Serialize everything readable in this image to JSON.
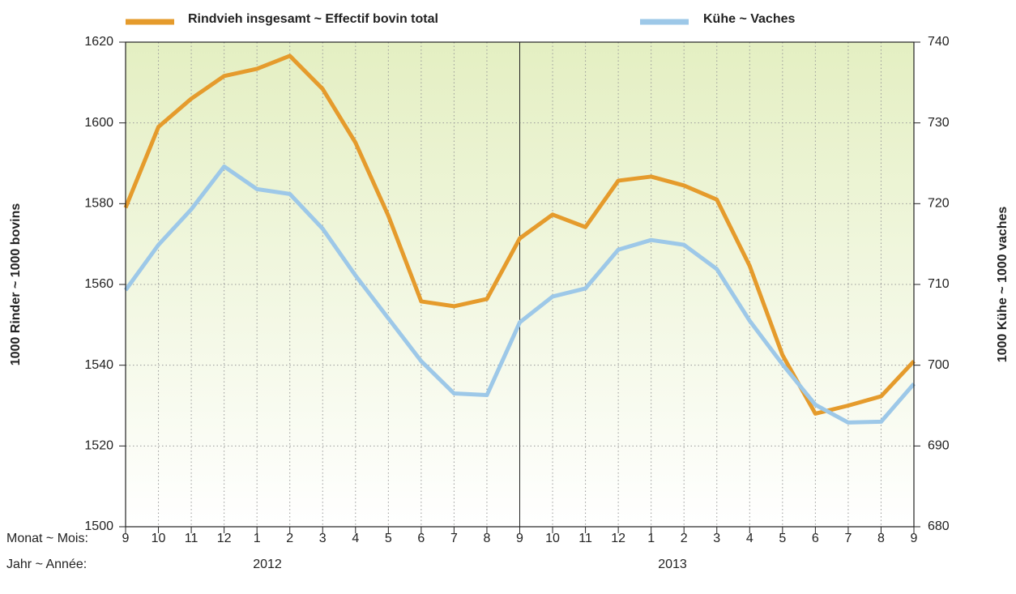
{
  "chart_data": {
    "type": "line",
    "x_label_title": "Monat ~ Mois:",
    "year_label_title": "Jahr ~ Année:",
    "categories": [
      "9",
      "10",
      "11",
      "12",
      "1",
      "2",
      "3",
      "4",
      "5",
      "6",
      "7",
      "8",
      "9",
      "10",
      "11",
      "12",
      "1",
      "2",
      "3",
      "4",
      "5",
      "6",
      "7",
      "8",
      "9"
    ],
    "years": [
      "2012",
      "2013"
    ],
    "ylabel": "1000 Rinder ~ 1000 bovins",
    "y2label": "1000 Kühe ~ 1000 vaches",
    "ylim": [
      1500,
      1620
    ],
    "yticks": [
      1500,
      1520,
      1540,
      1560,
      1580,
      1600,
      1620
    ],
    "y2lim": [
      680,
      740
    ],
    "y2ticks": [
      680,
      690,
      700,
      710,
      720,
      730,
      740
    ],
    "grid": true,
    "series": [
      {
        "name": "Rindvieh insgesamt ~ Effectif bovin total",
        "color": "#e59b2c",
        "values": [
          1579,
          1599,
          1606,
          1611.6,
          1613.4,
          1616.6,
          1608.4,
          1595.1,
          1577,
          1555.8,
          1554.6,
          1556.4,
          1571.4,
          1577.3,
          1574.2,
          1585.7,
          1586.7,
          1584.5,
          1581,
          1564.6,
          1542.5,
          1528,
          1530,
          1532.3,
          1541
        ]
      },
      {
        "name": "Kühe ~ Vaches",
        "color": "#9dc8e8",
        "axis": "y2",
        "values": [
          709.3,
          714.9,
          719.3,
          724.6,
          721.8,
          721.2,
          716.9,
          711.1,
          705.8,
          700.5,
          696.5,
          696.3,
          705.3,
          708.5,
          709.5,
          714.3,
          715.5,
          714.9,
          711.9,
          705.5,
          700.1,
          695.1,
          692.9,
          693,
          697.7
        ]
      }
    ]
  }
}
